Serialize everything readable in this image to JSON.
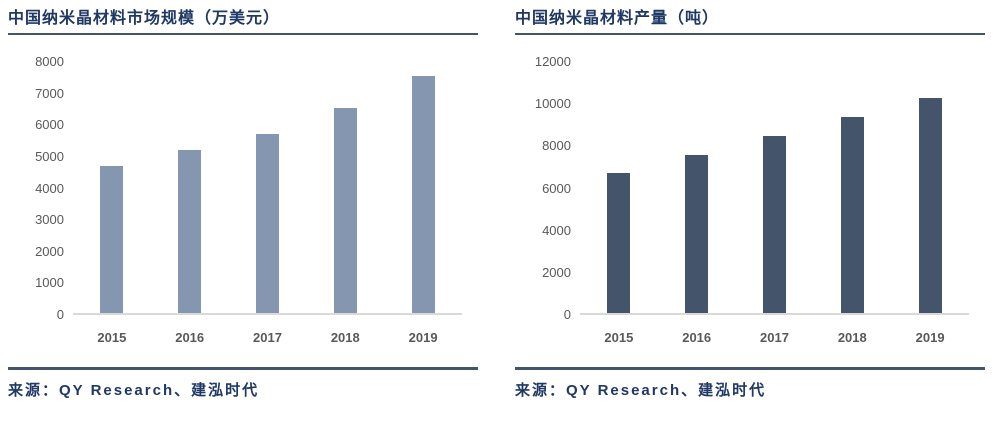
{
  "charts": [
    {
      "title": "中国纳米晶材料市场规模（万美元）",
      "source": "来源：QY Research、建泓时代"
    },
    {
      "title": "中国纳米晶材料产量（吨）",
      "source": "来源：QY Research、建泓时代"
    }
  ],
  "chart_data": [
    {
      "type": "bar",
      "title": "中国纳米晶材料市场规模（万美元）",
      "categories": [
        "2015",
        "2016",
        "2017",
        "2018",
        "2019"
      ],
      "values": [
        4650,
        5150,
        5650,
        6480,
        7500
      ],
      "xlabel": "",
      "ylabel": "",
      "ylim": [
        0,
        8000
      ],
      "ytick_step": 1000,
      "bar_color": "#8496b0",
      "grid": false,
      "legend": null
    },
    {
      "type": "bar",
      "title": "中国纳米晶材料产量（吨）",
      "categories": [
        "2015",
        "2016",
        "2017",
        "2018",
        "2019"
      ],
      "values": [
        6650,
        7500,
        8400,
        9300,
        10200
      ],
      "xlabel": "",
      "ylabel": "",
      "ylim": [
        0,
        12000
      ],
      "ytick_step": 2000,
      "bar_color": "#44546a",
      "grid": false,
      "legend": null
    }
  ],
  "colors": {
    "title_text": "#1f3864",
    "rule": "#44546a",
    "axis_text": "#595959",
    "axis_line": "#d9d9d9",
    "left_bar": "#8496b0",
    "right_bar": "#44546a"
  }
}
